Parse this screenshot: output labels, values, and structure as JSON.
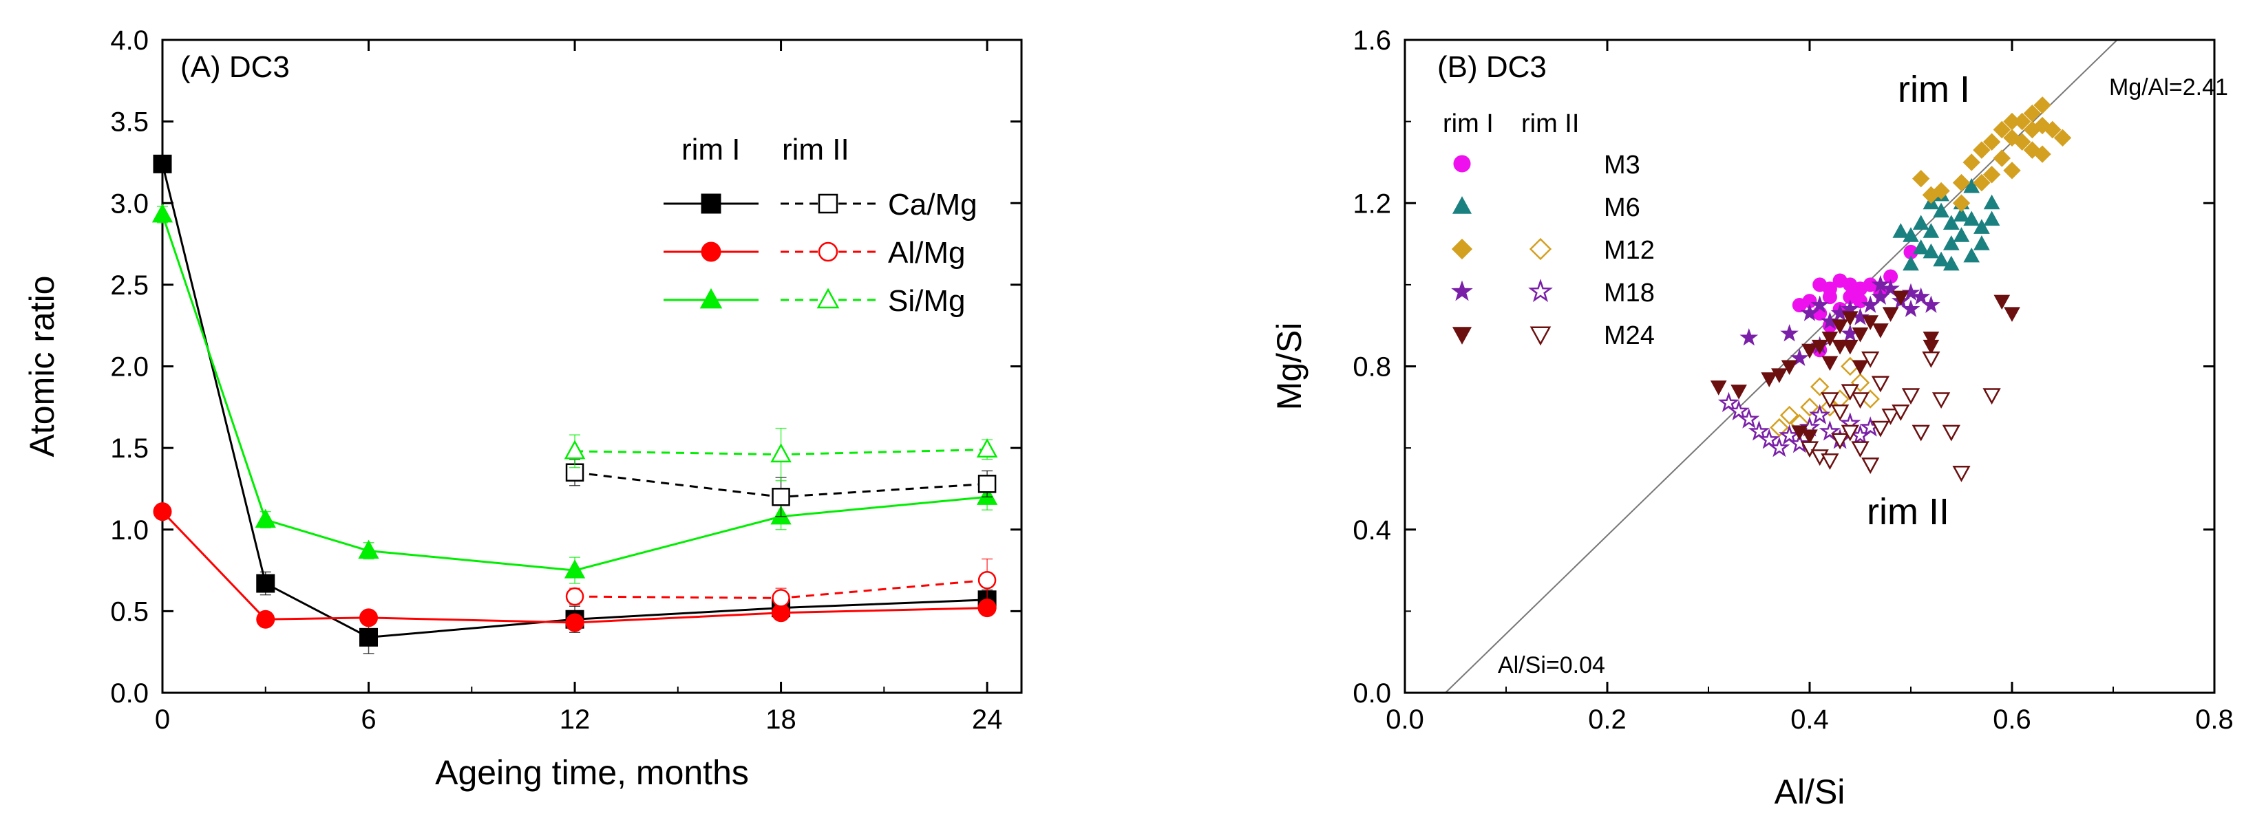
{
  "chart_data": [
    {
      "type": "line",
      "title": "(A) DC3",
      "xlabel": "Ageing time, months",
      "ylabel": "Atomic ratio",
      "xlim": [
        0,
        25
      ],
      "ylim": [
        0,
        4.0
      ],
      "xticks": [
        0,
        6,
        12,
        18,
        24
      ],
      "yticks": [
        0.0,
        0.5,
        1.0,
        1.5,
        2.0,
        2.5,
        3.0,
        3.5,
        4.0
      ],
      "legend_headers": [
        "rim I",
        "rim II"
      ],
      "series": [
        {
          "name": "Ca/Mg",
          "rim": "rim I",
          "color": "#000000",
          "marker": "square",
          "filled": true,
          "dashed": false,
          "x": [
            0,
            3,
            6,
            12,
            18,
            24
          ],
          "y": [
            3.24,
            0.67,
            0.34,
            0.45,
            0.52,
            0.57
          ],
          "err": [
            0.05,
            0.07,
            0.1,
            0.08,
            0.03,
            0.06
          ]
        },
        {
          "name": "Al/Mg",
          "rim": "rim I",
          "color": "#ff0000",
          "marker": "circle",
          "filled": true,
          "dashed": false,
          "x": [
            0,
            3,
            6,
            12,
            18,
            24
          ],
          "y": [
            1.11,
            0.45,
            0.46,
            0.43,
            0.49,
            0.52
          ],
          "err": [
            0.04,
            0.03,
            0.03,
            0.03,
            0.03,
            0.04
          ]
        },
        {
          "name": "Si/Mg",
          "rim": "rim I",
          "color": "#00ee00",
          "marker": "triangle",
          "filled": true,
          "dashed": false,
          "x": [
            0,
            3,
            6,
            12,
            18,
            24
          ],
          "y": [
            2.93,
            1.06,
            0.87,
            0.75,
            1.08,
            1.2
          ],
          "err": [
            0.05,
            0.05,
            0.05,
            0.08,
            0.08,
            0.08
          ]
        },
        {
          "name": "Ca/Mg",
          "rim": "rim II",
          "color": "#000000",
          "marker": "square",
          "filled": false,
          "dashed": true,
          "x": [
            12,
            18,
            24
          ],
          "y": [
            1.35,
            1.2,
            1.28
          ],
          "err": [
            0.08,
            0.12,
            0.08
          ]
        },
        {
          "name": "Al/Mg",
          "rim": "rim II",
          "color": "#ff0000",
          "marker": "circle",
          "filled": false,
          "dashed": true,
          "x": [
            12,
            18,
            24
          ],
          "y": [
            0.59,
            0.58,
            0.69
          ],
          "err": [
            0.05,
            0.06,
            0.13
          ]
        },
        {
          "name": "Si/Mg",
          "rim": "rim II",
          "color": "#00ee00",
          "marker": "triangle",
          "filled": false,
          "dashed": true,
          "x": [
            12,
            18,
            24
          ],
          "y": [
            1.48,
            1.46,
            1.49
          ],
          "err": [
            0.1,
            0.16,
            0.06
          ]
        }
      ]
    },
    {
      "type": "scatter",
      "title": "(B) DC3",
      "xlabel": "Al/Si",
      "ylabel": "Mg/Si",
      "xlim": [
        0,
        0.8
      ],
      "ylim": [
        0,
        1.6
      ],
      "xticks": [
        0.0,
        0.2,
        0.4,
        0.6,
        0.8
      ],
      "yticks": [
        0.0,
        0.4,
        0.8,
        1.2,
        1.6
      ],
      "legend_headers": [
        "rim I",
        "rim II"
      ],
      "annotations": [
        "rim I",
        "rim II",
        "Mg/Al=2.41",
        "Al/Si=0.04"
      ],
      "reference_line": {
        "slope": 2.41,
        "x_intercept": 0.04,
        "color": "#777777"
      },
      "series": [
        {
          "name": "M3",
          "rim": "rim I",
          "color": "#ee11ee",
          "marker": "circle",
          "filled": true,
          "points": [
            [
              0.41,
              1.0
            ],
            [
              0.42,
              0.99
            ],
            [
              0.43,
              1.01
            ],
            [
              0.44,
              1.0
            ],
            [
              0.45,
              0.99
            ],
            [
              0.46,
              1.0
            ],
            [
              0.42,
              0.97
            ],
            [
              0.44,
              0.97
            ],
            [
              0.4,
              0.96
            ],
            [
              0.39,
              0.95
            ],
            [
              0.41,
              0.93
            ],
            [
              0.43,
              0.94
            ],
            [
              0.45,
              0.96
            ],
            [
              0.47,
              0.98
            ],
            [
              0.48,
              1.02
            ],
            [
              0.5,
              1.08
            ],
            [
              0.41,
              0.84
            ],
            [
              0.42,
              0.9
            ]
          ]
        },
        {
          "name": "M6",
          "rim": "rim I",
          "color": "#1a8080",
          "marker": "triangle",
          "filled": true,
          "points": [
            [
              0.5,
              1.12
            ],
            [
              0.51,
              1.15
            ],
            [
              0.52,
              1.13
            ],
            [
              0.53,
              1.18
            ],
            [
              0.54,
              1.1
            ],
            [
              0.55,
              1.2
            ],
            [
              0.56,
              1.16
            ],
            [
              0.57,
              1.14
            ],
            [
              0.58,
              1.2
            ],
            [
              0.52,
              1.08
            ],
            [
              0.53,
              1.06
            ],
            [
              0.54,
              1.05
            ],
            [
              0.55,
              1.12
            ],
            [
              0.56,
              1.07
            ],
            [
              0.5,
              1.05
            ],
            [
              0.52,
              1.2
            ],
            [
              0.53,
              1.22
            ],
            [
              0.55,
              1.17
            ],
            [
              0.57,
              1.1
            ],
            [
              0.54,
              1.15
            ],
            [
              0.58,
              1.16
            ],
            [
              0.56,
              1.24
            ],
            [
              0.51,
              1.09
            ],
            [
              0.49,
              1.13
            ]
          ]
        },
        {
          "name": "M12",
          "rim": "rim I",
          "color": "#d4a020",
          "marker": "diamond",
          "filled": true,
          "points": [
            [
              0.56,
              1.3
            ],
            [
              0.57,
              1.33
            ],
            [
              0.58,
              1.35
            ],
            [
              0.59,
              1.38
            ],
            [
              0.6,
              1.36
            ],
            [
              0.61,
              1.4
            ],
            [
              0.62,
              1.42
            ],
            [
              0.63,
              1.44
            ],
            [
              0.64,
              1.38
            ],
            [
              0.65,
              1.36
            ],
            [
              0.6,
              1.4
            ],
            [
              0.61,
              1.35
            ],
            [
              0.62,
              1.38
            ],
            [
              0.63,
              1.32
            ],
            [
              0.59,
              1.31
            ],
            [
              0.58,
              1.27
            ],
            [
              0.55,
              1.25
            ],
            [
              0.53,
              1.23
            ],
            [
              0.52,
              1.22
            ],
            [
              0.51,
              1.26
            ],
            [
              0.6,
              1.28
            ],
            [
              0.62,
              1.33
            ],
            [
              0.57,
              1.25
            ],
            [
              0.55,
              1.2
            ],
            [
              0.63,
              1.39
            ]
          ]
        },
        {
          "name": "M12",
          "rim": "rim II",
          "color": "#d4a020",
          "marker": "diamond",
          "filled": false,
          "points": [
            [
              0.37,
              0.65
            ],
            [
              0.38,
              0.68
            ],
            [
              0.4,
              0.7
            ],
            [
              0.41,
              0.75
            ],
            [
              0.43,
              0.72
            ],
            [
              0.44,
              0.8
            ],
            [
              0.45,
              0.76
            ],
            [
              0.42,
              0.7
            ],
            [
              0.39,
              0.66
            ],
            [
              0.46,
              0.72
            ]
          ]
        },
        {
          "name": "M18",
          "rim": "rim I",
          "color": "#7a1fa8",
          "marker": "star",
          "filled": true,
          "points": [
            [
              0.34,
              0.87
            ],
            [
              0.38,
              0.88
            ],
            [
              0.4,
              0.93
            ],
            [
              0.41,
              0.95
            ],
            [
              0.42,
              0.91
            ],
            [
              0.43,
              0.93
            ],
            [
              0.44,
              0.94
            ],
            [
              0.45,
              0.92
            ],
            [
              0.46,
              0.95
            ],
            [
              0.47,
              0.97
            ],
            [
              0.48,
              0.99
            ],
            [
              0.49,
              0.96
            ],
            [
              0.5,
              0.94
            ],
            [
              0.51,
              0.97
            ],
            [
              0.52,
              0.95
            ],
            [
              0.39,
              0.82
            ],
            [
              0.41,
              0.85
            ],
            [
              0.44,
              0.88
            ],
            [
              0.47,
              1.0
            ],
            [
              0.5,
              0.98
            ]
          ]
        },
        {
          "name": "M18",
          "rim": "rim II",
          "color": "#7a1fa8",
          "marker": "star",
          "filled": false,
          "points": [
            [
              0.32,
              0.71
            ],
            [
              0.33,
              0.69
            ],
            [
              0.34,
              0.67
            ],
            [
              0.35,
              0.64
            ],
            [
              0.36,
              0.62
            ],
            [
              0.37,
              0.6
            ],
            [
              0.38,
              0.63
            ],
            [
              0.39,
              0.61
            ],
            [
              0.4,
              0.65
            ],
            [
              0.41,
              0.68
            ],
            [
              0.42,
              0.64
            ],
            [
              0.43,
              0.62
            ],
            [
              0.44,
              0.66
            ],
            [
              0.45,
              0.63
            ],
            [
              0.46,
              0.65
            ]
          ]
        },
        {
          "name": "M24",
          "rim": "rim I",
          "color": "#6b0f0f",
          "marker": "triangle-down",
          "filled": true,
          "points": [
            [
              0.31,
              0.75
            ],
            [
              0.33,
              0.74
            ],
            [
              0.36,
              0.77
            ],
            [
              0.37,
              0.78
            ],
            [
              0.38,
              0.8
            ],
            [
              0.4,
              0.84
            ],
            [
              0.41,
              0.85
            ],
            [
              0.42,
              0.87
            ],
            [
              0.43,
              0.9
            ],
            [
              0.44,
              0.92
            ],
            [
              0.45,
              0.88
            ],
            [
              0.46,
              0.91
            ],
            [
              0.47,
              0.89
            ],
            [
              0.48,
              0.93
            ],
            [
              0.49,
              0.97
            ],
            [
              0.52,
              0.87
            ],
            [
              0.52,
              0.85
            ],
            [
              0.59,
              0.96
            ],
            [
              0.6,
              0.93
            ],
            [
              0.42,
              0.81
            ],
            [
              0.45,
              0.8
            ],
            [
              0.39,
              0.64
            ],
            [
              0.4,
              0.63
            ],
            [
              0.43,
              0.85
            ],
            [
              0.44,
              0.85
            ]
          ]
        },
        {
          "name": "M24",
          "rim": "rim II",
          "color": "#6b0f0f",
          "marker": "triangle-down",
          "filled": false,
          "points": [
            [
              0.4,
              0.6
            ],
            [
              0.41,
              0.58
            ],
            [
              0.42,
              0.57
            ],
            [
              0.43,
              0.62
            ],
            [
              0.44,
              0.64
            ],
            [
              0.45,
              0.6
            ],
            [
              0.46,
              0.56
            ],
            [
              0.47,
              0.65
            ],
            [
              0.48,
              0.68
            ],
            [
              0.5,
              0.73
            ],
            [
              0.51,
              0.64
            ],
            [
              0.52,
              0.82
            ],
            [
              0.53,
              0.72
            ],
            [
              0.54,
              0.64
            ],
            [
              0.55,
              0.54
            ],
            [
              0.58,
              0.73
            ],
            [
              0.45,
              0.72
            ],
            [
              0.46,
              0.82
            ],
            [
              0.47,
              0.76
            ],
            [
              0.49,
              0.69
            ],
            [
              0.44,
              0.74
            ],
            [
              0.43,
              0.69
            ],
            [
              0.42,
              0.72
            ]
          ]
        }
      ]
    }
  ]
}
